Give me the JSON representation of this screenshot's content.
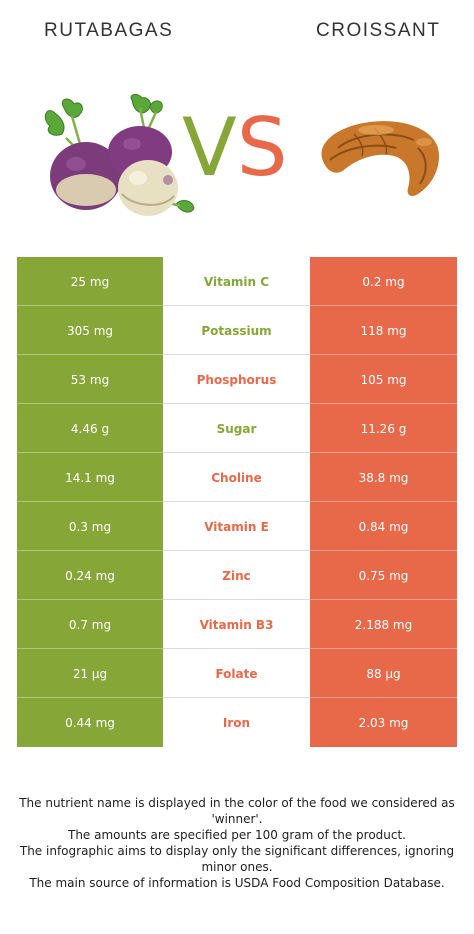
{
  "header": {
    "food_left": "RUTABAGAS",
    "food_right": "CROISSANT",
    "vs_v": "V",
    "vs_s": "S"
  },
  "colors": {
    "left": "#86a738",
    "right": "#e8694a"
  },
  "rows": [
    {
      "left": "25 mg",
      "nutrient": "Vitamin C",
      "right": "0.2 mg",
      "winner": "left"
    },
    {
      "left": "305 mg",
      "nutrient": "Potassium",
      "right": "118 mg",
      "winner": "left"
    },
    {
      "left": "53 mg",
      "nutrient": "Phosphorus",
      "right": "105 mg",
      "winner": "right"
    },
    {
      "left": "4.46 g",
      "nutrient": "Sugar",
      "right": "11.26 g",
      "winner": "left"
    },
    {
      "left": "14.1 mg",
      "nutrient": "Choline",
      "right": "38.8 mg",
      "winner": "right"
    },
    {
      "left": "0.3 mg",
      "nutrient": "Vitamin E",
      "right": "0.84 mg",
      "winner": "right"
    },
    {
      "left": "0.24 mg",
      "nutrient": "Zinc",
      "right": "0.75 mg",
      "winner": "right"
    },
    {
      "left": "0.7 mg",
      "nutrient": "Vitamin B3",
      "right": "2.188 mg",
      "winner": "right"
    },
    {
      "left": "21 µg",
      "nutrient": "Folate",
      "right": "88 µg",
      "winner": "right"
    },
    {
      "left": "0.44 mg",
      "nutrient": "Iron",
      "right": "2.03 mg",
      "winner": "right"
    }
  ],
  "footer": {
    "line1": "The nutrient name is displayed in the color of the food we considered as 'winner'.",
    "line2": "The amounts are specified per 100 gram of the product.",
    "line3": "The infographic aims to display only the significant differences, ignoring minor ones.",
    "line4": "The main source of information is USDA Food Composition Database."
  }
}
